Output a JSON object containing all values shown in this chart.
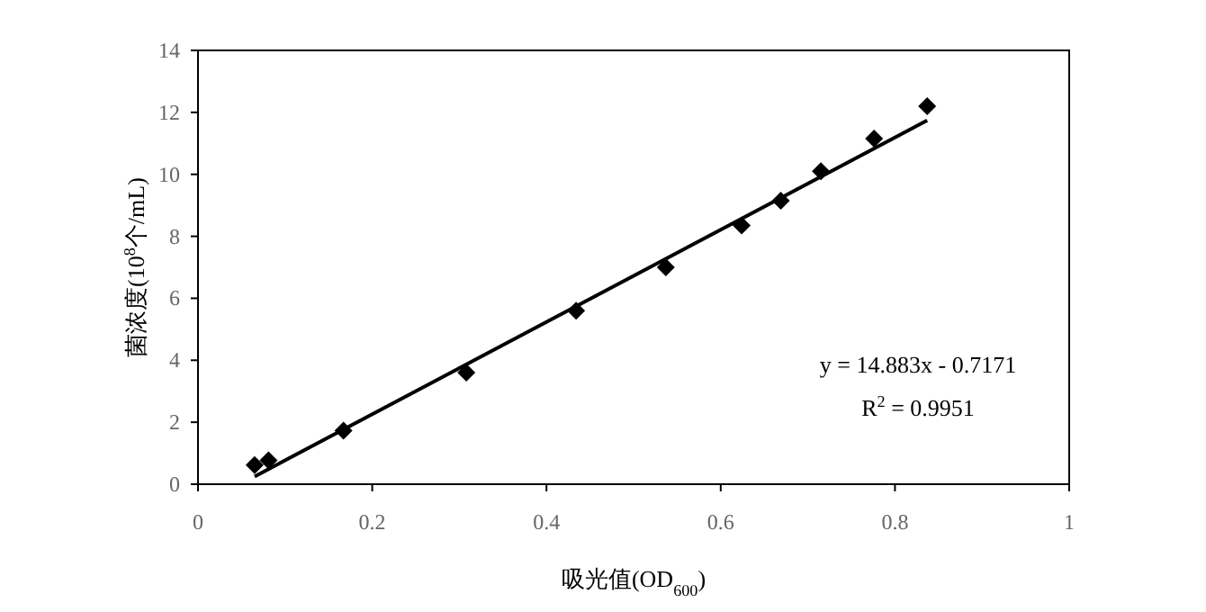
{
  "chart_data": {
    "type": "scatter",
    "xlabel": "吸光值(OD$_{600}$)",
    "ylabel": "菌浓度(10$^{8}$个/mL)",
    "xlim": [
      0,
      1
    ],
    "xticks": [
      0,
      0.2,
      0.4,
      0.6,
      0.8,
      1
    ],
    "ylim": [
      0,
      14
    ],
    "yticks": [
      0,
      2,
      4,
      6,
      8,
      10,
      12,
      14
    ],
    "grid": false,
    "marker": "diamond",
    "series": [
      {
        "type": "scatter",
        "color": "#000000",
        "x": [
          0.065,
          0.081,
          0.167,
          0.308,
          0.434,
          0.537,
          0.624,
          0.669,
          0.715,
          0.776,
          0.837
        ],
        "values": [
          0.62,
          0.77,
          1.73,
          3.6,
          5.6,
          7.0,
          8.35,
          9.15,
          10.1,
          11.15,
          12.2
        ]
      },
      {
        "type": "line",
        "color": "#000000",
        "marker": "none",
        "line_style": "solid",
        "x": [
          0.065,
          0.837
        ],
        "values": [
          0.25,
          11.74
        ]
      }
    ],
    "annotations": [
      "y = 14.883x - 0.7171",
      "R$^{2}$ = 0.9951"
    ]
  }
}
